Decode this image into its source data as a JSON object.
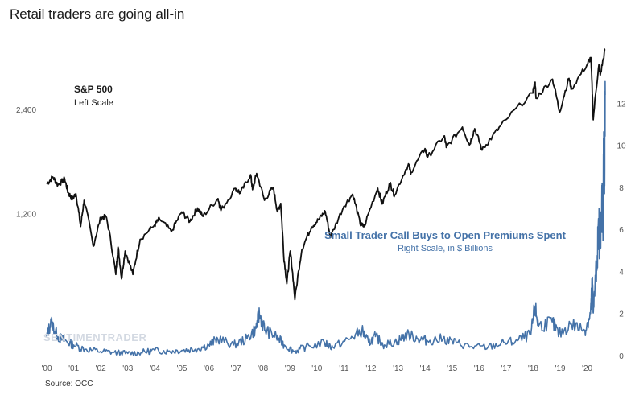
{
  "title": "Retail traders are going all-in",
  "source": "Source: OCC",
  "watermark": "SENTIMENTRADER",
  "annotations": {
    "sp500_title": "S&P 500",
    "sp500_sub": "Left Scale",
    "calls_title": "Small Trader Call Buys to Open Premiums Spent",
    "calls_sub": "Right Scale, in $ Billions"
  },
  "colors": {
    "sp500": "#111111",
    "calls": "#4472a8",
    "axis_text": "#555555"
  },
  "chart_data": {
    "type": "line",
    "x_range": [
      "2000-01-01",
      "2020-09-01"
    ],
    "x_ticks": [
      "'00",
      "'01",
      "'02",
      "'03",
      "'04",
      "'05",
      "'06",
      "'07",
      "'08",
      "'09",
      "'10",
      "'11",
      "'12",
      "'13",
      "'14",
      "'15",
      "'16",
      "'17",
      "'18",
      "'19",
      "'20"
    ],
    "left_axis": {
      "scale": "log",
      "ticks": [
        1200,
        2400
      ],
      "tick_labels": [
        "1,200",
        "2,400"
      ],
      "range": [
        650,
        3600
      ]
    },
    "right_axis": {
      "scale": "linear",
      "ticks": [
        0,
        2,
        4,
        6,
        8,
        10,
        12
      ],
      "tick_labels": [
        "0",
        "2",
        "4",
        "6",
        "8",
        "10",
        "12"
      ],
      "range": [
        0,
        12.4
      ]
    },
    "grid": false,
    "series": [
      {
        "name": "S&P 500",
        "axis": "left",
        "points": [
          [
            "2000-01-01",
            1460
          ],
          [
            "2000-03-24",
            1530
          ],
          [
            "2000-06-01",
            1450
          ],
          [
            "2000-09-01",
            1510
          ],
          [
            "2000-10-15",
            1380
          ],
          [
            "2000-12-15",
            1320
          ],
          [
            "2001-01-30",
            1370
          ],
          [
            "2001-04-04",
            1100
          ],
          [
            "2001-05-21",
            1310
          ],
          [
            "2001-09-21",
            965
          ],
          [
            "2002-01-04",
            1170
          ],
          [
            "2002-03-19",
            1170
          ],
          [
            "2002-07-23",
            800
          ],
          [
            "2002-08-22",
            960
          ],
          [
            "2002-10-09",
            777
          ],
          [
            "2002-11-27",
            935
          ],
          [
            "2003-03-11",
            800
          ],
          [
            "2003-06-17",
            1010
          ],
          [
            "2003-12-31",
            1112
          ],
          [
            "2004-03-05",
            1157
          ],
          [
            "2004-08-12",
            1063
          ],
          [
            "2004-12-31",
            1212
          ],
          [
            "2005-04-20",
            1138
          ],
          [
            "2005-08-01",
            1245
          ],
          [
            "2005-10-13",
            1177
          ],
          [
            "2006-05-05",
            1325
          ],
          [
            "2006-06-13",
            1223
          ],
          [
            "2006-12-29",
            1418
          ],
          [
            "2007-03-05",
            1374
          ],
          [
            "2007-07-19",
            1553
          ],
          [
            "2007-08-15",
            1406
          ],
          [
            "2007-10-09",
            1565
          ],
          [
            "2008-01-22",
            1310
          ],
          [
            "2008-05-19",
            1426
          ],
          [
            "2008-07-15",
            1214
          ],
          [
            "2008-08-29",
            1283
          ],
          [
            "2008-10-10",
            899
          ],
          [
            "2008-11-20",
            752
          ],
          [
            "2009-01-06",
            935
          ],
          [
            "2009-03-09",
            677
          ],
          [
            "2009-06-12",
            946
          ],
          [
            "2009-10-19",
            1098
          ],
          [
            "2010-01-19",
            1150
          ],
          [
            "2010-04-23",
            1217
          ],
          [
            "2010-07-02",
            1022
          ],
          [
            "2010-12-31",
            1258
          ],
          [
            "2011-04-29",
            1364
          ],
          [
            "2011-08-08",
            1119
          ],
          [
            "2011-10-03",
            1099
          ],
          [
            "2012-04-02",
            1419
          ],
          [
            "2012-06-01",
            1278
          ],
          [
            "2012-09-14",
            1466
          ],
          [
            "2012-11-15",
            1353
          ],
          [
            "2013-05-21",
            1669
          ],
          [
            "2013-06-24",
            1573
          ],
          [
            "2013-12-31",
            1848
          ],
          [
            "2014-02-03",
            1741
          ],
          [
            "2014-09-18",
            2011
          ],
          [
            "2014-10-15",
            1862
          ],
          [
            "2015-05-21",
            2131
          ],
          [
            "2015-08-24",
            1893
          ],
          [
            "2015-11-03",
            2109
          ],
          [
            "2016-02-11",
            1829
          ],
          [
            "2016-06-27",
            2000
          ],
          [
            "2016-12-30",
            2239
          ],
          [
            "2017-12-29",
            2674
          ],
          [
            "2018-01-26",
            2873
          ],
          [
            "2018-02-08",
            2581
          ],
          [
            "2018-09-20",
            2931
          ],
          [
            "2018-12-24",
            2351
          ],
          [
            "2019-04-30",
            2946
          ],
          [
            "2019-06-03",
            2744
          ],
          [
            "2019-12-31",
            3231
          ],
          [
            "2020-02-19",
            3386
          ],
          [
            "2020-03-23",
            2237
          ],
          [
            "2020-06-08",
            3232
          ],
          [
            "2020-06-26",
            3009
          ],
          [
            "2020-09-01",
            3580
          ]
        ]
      },
      {
        "name": "Small Trader Call Buys to Open Premiums Spent",
        "axis": "right",
        "points": [
          [
            "2000-01-01",
            0.9
          ],
          [
            "2000-03-01",
            1.6
          ],
          [
            "2000-06-01",
            0.9
          ],
          [
            "2000-09-01",
            0.7
          ],
          [
            "2001-01-01",
            0.5
          ],
          [
            "2001-06-01",
            0.3
          ],
          [
            "2002-01-01",
            0.2
          ],
          [
            "2002-07-01",
            0.15
          ],
          [
            "2003-01-01",
            0.1
          ],
          [
            "2003-07-01",
            0.15
          ],
          [
            "2004-01-01",
            0.25
          ],
          [
            "2004-07-01",
            0.2
          ],
          [
            "2005-01-01",
            0.25
          ],
          [
            "2005-07-01",
            0.3
          ],
          [
            "2006-01-01",
            0.5
          ],
          [
            "2006-05-01",
            0.8
          ],
          [
            "2006-12-01",
            0.5
          ],
          [
            "2007-06-01",
            0.8
          ],
          [
            "2007-10-01",
            1.3
          ],
          [
            "2007-11-15",
            2.0
          ],
          [
            "2008-02-01",
            1.2
          ],
          [
            "2008-07-01",
            0.9
          ],
          [
            "2008-10-15",
            0.5
          ],
          [
            "2009-03-01",
            0.2
          ],
          [
            "2009-08-01",
            0.4
          ],
          [
            "2010-04-15",
            0.6
          ],
          [
            "2010-08-01",
            0.4
          ],
          [
            "2011-04-01",
            0.8
          ],
          [
            "2011-09-01",
            1.2
          ],
          [
            "2011-12-01",
            0.6
          ],
          [
            "2012-03-01",
            0.9
          ],
          [
            "2012-07-01",
            0.5
          ],
          [
            "2013-01-01",
            0.7
          ],
          [
            "2013-05-01",
            1.0
          ],
          [
            "2013-10-01",
            0.8
          ],
          [
            "2014-02-01",
            0.7
          ],
          [
            "2014-09-01",
            0.8
          ],
          [
            "2015-03-01",
            0.6
          ],
          [
            "2015-10-01",
            0.4
          ],
          [
            "2016-05-01",
            0.4
          ],
          [
            "2016-12-01",
            0.6
          ],
          [
            "2017-06-01",
            0.7
          ],
          [
            "2017-12-01",
            1.0
          ],
          [
            "2018-01-25",
            2.3
          ],
          [
            "2018-03-15",
            1.4
          ],
          [
            "2018-09-15",
            1.6
          ],
          [
            "2018-12-15",
            1.0
          ],
          [
            "2019-06-01",
            1.5
          ],
          [
            "2019-12-01",
            1.2
          ],
          [
            "2020-02-15",
            2.0
          ],
          [
            "2020-03-10",
            3.5
          ],
          [
            "2020-03-25",
            2.1
          ],
          [
            "2020-05-01",
            4.0
          ],
          [
            "2020-06-08",
            6.2
          ],
          [
            "2020-06-20",
            5.0
          ],
          [
            "2020-07-20",
            7.5
          ],
          [
            "2020-08-01",
            5.6
          ],
          [
            "2020-08-10",
            9.5
          ],
          [
            "2020-08-20",
            8.0
          ],
          [
            "2020-09-01",
            12.4
          ]
        ]
      }
    ]
  }
}
